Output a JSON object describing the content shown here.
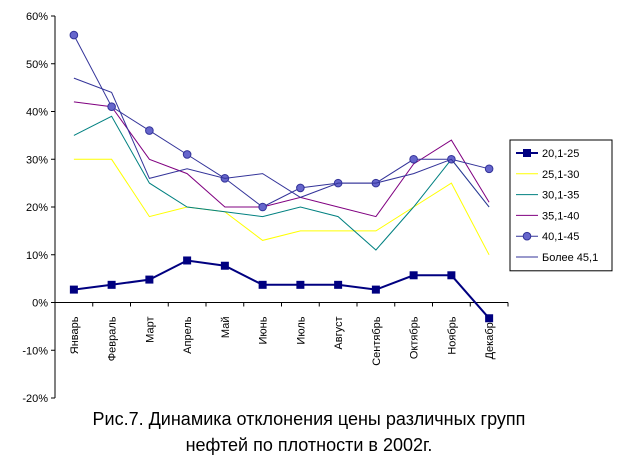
{
  "caption": {
    "line1": "Рис.7. Динамика отклонения цены различных групп",
    "line2": "нефтей по плотности в 2002г."
  },
  "chart_data": {
    "type": "line",
    "categories": [
      "Январь",
      "Февраль",
      "Март",
      "Апрель",
      "Май",
      "Июнь",
      "Июль",
      "Август",
      "Сентябрь",
      "Октябрь",
      "Ноябрь",
      "Декабрь"
    ],
    "ylim": [
      -20,
      60
    ],
    "yticks": [
      -20,
      -10,
      0,
      10,
      20,
      30,
      40,
      50,
      60
    ],
    "ytick_labels": [
      "-20%",
      "-10%",
      "0%",
      "10%",
      "20%",
      "30%",
      "40%",
      "50%",
      "60%"
    ],
    "grid": false,
    "legend": "right",
    "series": [
      {
        "name": "20,1-25",
        "color": "#000080",
        "marker": "square",
        "width": 2,
        "values": [
          2.7,
          3.7,
          4.8,
          8.8,
          7.7,
          3.7,
          3.7,
          3.7,
          2.7,
          5.7,
          5.7,
          -3.3
        ]
      },
      {
        "name": "25,1-30",
        "color": "#ffff00",
        "marker": "none",
        "width": 1,
        "values": [
          30,
          30,
          18,
          20,
          19,
          13,
          15,
          15,
          15,
          20,
          25,
          10
        ]
      },
      {
        "name": "30,1-35",
        "color": "#008080",
        "marker": "none",
        "width": 1,
        "values": [
          35,
          39,
          25,
          20,
          19,
          18,
          20,
          18,
          11,
          20,
          30,
          20
        ]
      },
      {
        "name": "35,1-40",
        "color": "#800080",
        "marker": "none",
        "width": 1,
        "values": [
          42,
          41,
          30,
          27,
          20,
          20,
          22,
          20,
          18,
          29,
          34,
          21
        ]
      },
      {
        "name": "40,1-45",
        "color": "#333399",
        "marker": "circle",
        "width": 1,
        "values": [
          56,
          41,
          36,
          31,
          26,
          20,
          24,
          25,
          25,
          30,
          30,
          28
        ]
      },
      {
        "name": "Более 45,1",
        "color": "#333399",
        "marker": "none",
        "width": 1,
        "values": [
          47,
          44,
          26,
          28,
          26,
          27,
          22,
          25,
          25,
          27,
          30,
          20
        ]
      }
    ]
  }
}
